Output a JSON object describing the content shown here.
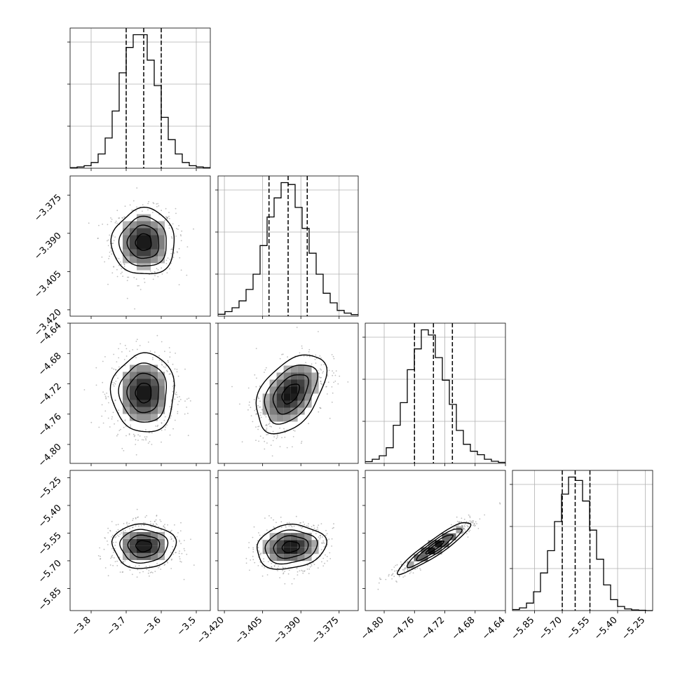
{
  "chart_data": {
    "type": "corner",
    "parameters": [
      {
        "index": 0,
        "range": [
          -3.86,
          -3.46
        ],
        "ticks": [
          -3.8,
          -3.7,
          -3.6,
          -3.5
        ],
        "tick_labels": [
          "−3.8",
          "−3.7",
          "−3.6",
          "−3.5"
        ],
        "quantiles": {
          "q16": -3.7,
          "q50": -3.65,
          "q84": -3.6
        },
        "histogram": {
          "edges_start": -3.86,
          "bin_width": 0.02,
          "counts": [
            2,
            4,
            8,
            18,
            45,
            95,
            180,
            300,
            380,
            420,
            420,
            340,
            260,
            160,
            90,
            45,
            18,
            8,
            4,
            2
          ]
        }
      },
      {
        "index": 1,
        "range": [
          -3.4225,
          -3.3675
        ],
        "ticks": [
          -3.42,
          -3.405,
          -3.39,
          -3.375
        ],
        "tick_labels": [
          "−3.420",
          "−3.405",
          "−3.390",
          "−3.375"
        ],
        "quantiles": {
          "q16": -3.4025,
          "q50": -3.395,
          "q84": -3.3875
        },
        "histogram": {
          "edges_start": -3.4225,
          "bin_width": 0.00275,
          "counts": [
            5,
            12,
            22,
            40,
            70,
            110,
            185,
            260,
            310,
            350,
            345,
            285,
            230,
            165,
            110,
            60,
            35,
            15,
            8,
            4
          ]
        }
      },
      {
        "index": 2,
        "range": [
          -4.825,
          -4.64
        ],
        "ticks": [
          -4.8,
          -4.76,
          -4.72,
          -4.68,
          -4.64
        ],
        "tick_labels": [
          "−4.80",
          "−4.76",
          "−4.72",
          "−4.68",
          "−4.64"
        ],
        "quantiles": {
          "q16": -4.76,
          "q50": -4.735,
          "q84": -4.71
        },
        "histogram": {
          "edges_start": -4.825,
          "bin_width": 0.00925,
          "counts": [
            5,
            12,
            22,
            45,
            110,
            175,
            270,
            330,
            385,
            370,
            305,
            240,
            170,
            95,
            55,
            35,
            25,
            12,
            6,
            3
          ]
        }
      },
      {
        "index": 3,
        "range": [
          -5.97,
          -5.21
        ],
        "ticks": [
          -5.85,
          -5.7,
          -5.55,
          -5.4,
          -5.25
        ],
        "tick_labels": [
          "−5.85",
          "−5.70",
          "−5.55",
          "−5.40",
          "−5.25"
        ],
        "quantiles": {
          "q16": -5.7,
          "q50": -5.63,
          "q84": -5.55
        },
        "histogram": {
          "edges_start": -5.97,
          "bin_width": 0.038,
          "counts": [
            3,
            8,
            22,
            55,
            110,
            175,
            260,
            340,
            390,
            380,
            320,
            235,
            150,
            75,
            32,
            12,
            5,
            2,
            1,
            0
          ]
        }
      }
    ],
    "pairs": [
      {
        "x": 0,
        "y": 1,
        "center": [
          -3.65,
          -3.3935
        ],
        "sigma": [
          0.045,
          0.0065
        ],
        "rho": 0.0
      },
      {
        "x": 0,
        "y": 2,
        "center": [
          -3.65,
          -4.732
        ],
        "sigma": [
          0.045,
          0.026
        ],
        "rho": 0.0
      },
      {
        "x": 1,
        "y": 2,
        "center": [
          -3.394,
          -4.733
        ],
        "sigma": [
          0.0068,
          0.026
        ],
        "rho": 0.45
      },
      {
        "x": 0,
        "y": 3,
        "center": [
          -3.65,
          -5.62
        ],
        "sigma": [
          0.045,
          0.06
        ],
        "rho": 0.0
      },
      {
        "x": 1,
        "y": 3,
        "center": [
          -3.394,
          -5.625
        ],
        "sigma": [
          0.0068,
          0.06
        ],
        "rho": 0.15
      },
      {
        "x": 2,
        "y": 3,
        "center": [
          -4.733,
          -5.627
        ],
        "sigma": [
          0.024,
          0.07
        ],
        "rho": 0.93
      }
    ],
    "contour_levels_sigma": [
      0.5,
      1.0,
      1.5,
      2.0
    ],
    "grid": true,
    "colors": {
      "line": "#000000",
      "grid": "#b0b0b0",
      "points": "#8a8a8a",
      "quantile_line": "#000000"
    }
  }
}
